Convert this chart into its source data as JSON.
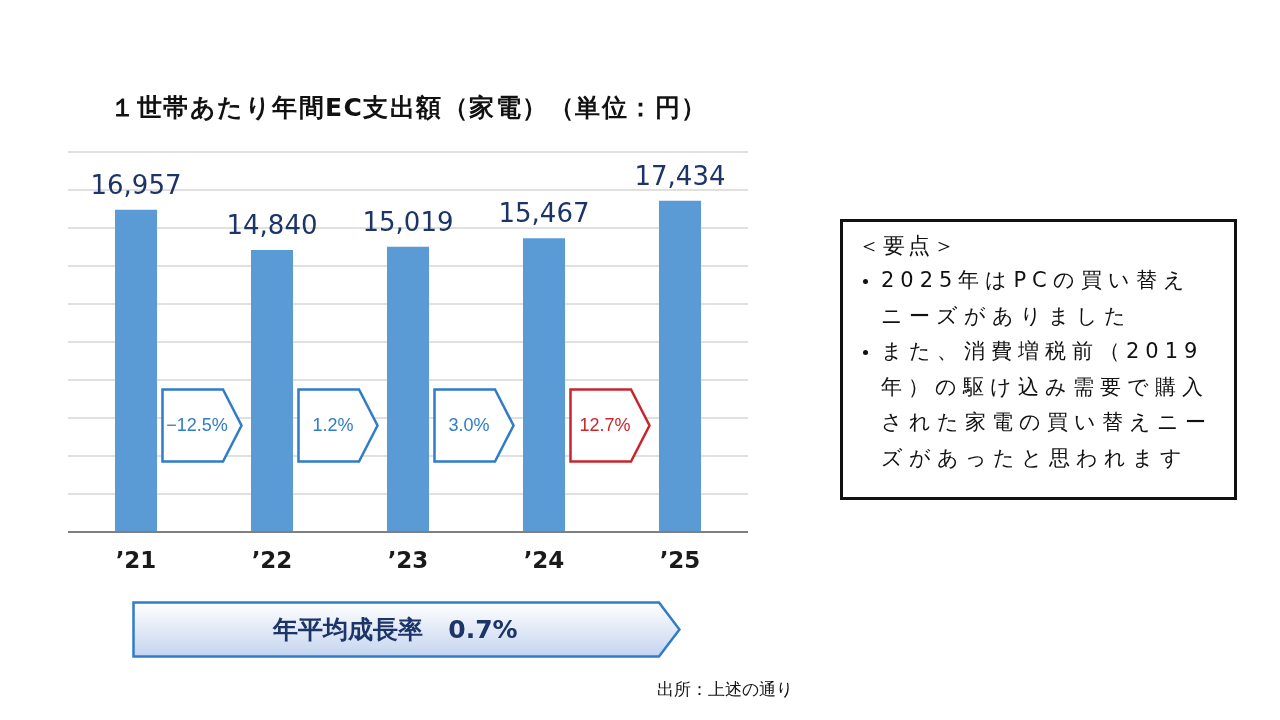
{
  "chart_data": {
    "type": "bar",
    "title": "１世帯あたり年間EC支出額（家電）（単位：円）",
    "categories": [
      "’21",
      "’22",
      "’23",
      "’24",
      "’25"
    ],
    "values": [
      16957,
      14840,
      15019,
      15467,
      17434
    ],
    "color": "#5b9bd5",
    "value_labels": [
      "16,957",
      "14,840",
      "15,019",
      "15,467",
      "17,434"
    ],
    "tick_labels": "x",
    "grid": "y",
    "annotations": [
      "−12.5%",
      "1.2%",
      "3.0%",
      "12.7%",
      "年平均成長率　0.7%",
      "＜要点＞",
      "2025年はPCの買い替えニーズがありました",
      "また、消費増税前（2019年）の駆け込み需要で購入された家電の買い替えニーズがあったと思われます",
      "出所：上述の通り"
    ]
  }
}
